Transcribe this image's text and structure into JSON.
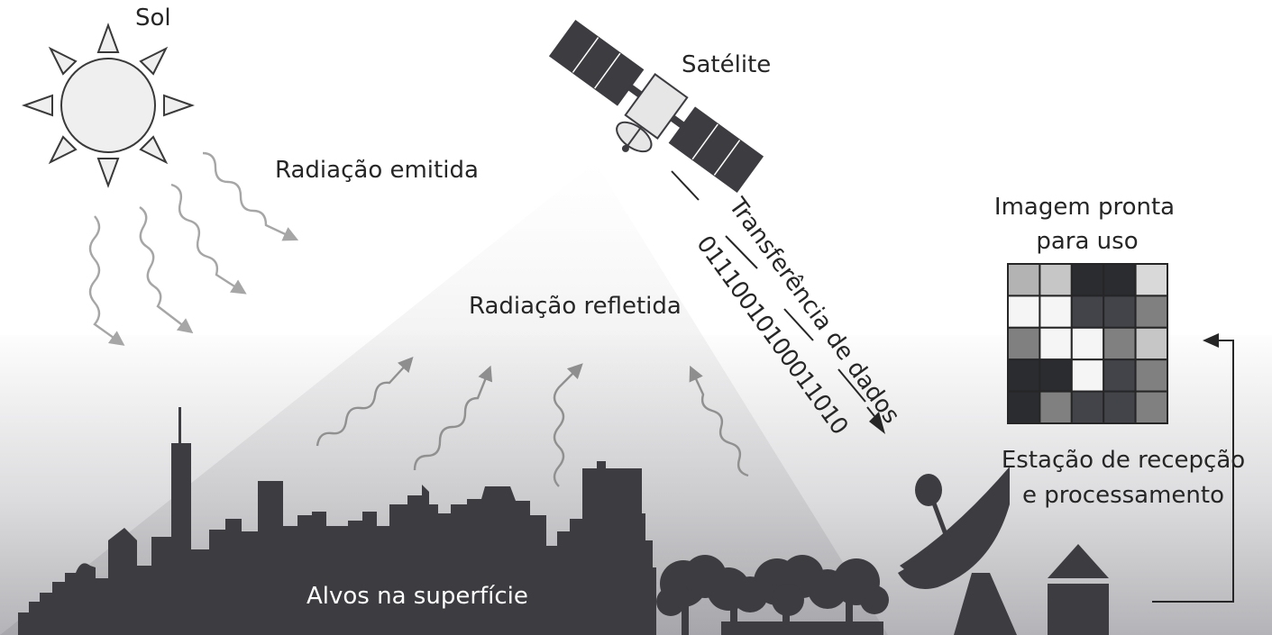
{
  "labels": {
    "sun": "Sol",
    "satellite": "Satélite",
    "emitted_radiation": "Radiação emitida",
    "reflected_radiation": "Radiação refletida",
    "data_transfer": "Transferência de dados",
    "binary": "01110010100011010",
    "image_title_line1": "Imagem pronta",
    "image_title_line2": "para uso",
    "station_line1": "Estação de recepção",
    "station_line2": "e processamento",
    "targets": "Alvos na superfície"
  },
  "image_grid": [
    [
      "#b3b3b3",
      "#c6c6c6",
      "#2b2c30",
      "#2b2c30",
      "#d9d9d9"
    ],
    [
      "#f5f5f5",
      "#f5f5f5",
      "#43444a",
      "#43444a",
      "#808080"
    ],
    [
      "#808080",
      "#f5f5f5",
      "#f5f5f5",
      "#808080",
      "#c6c6c6"
    ],
    [
      "#2b2c30",
      "#2b2c30",
      "#f5f5f5",
      "#43444a",
      "#808080"
    ],
    [
      "#2b2c30",
      "#808080",
      "#43444a",
      "#43444a",
      "#808080"
    ]
  ],
  "colors": {
    "silhouette": "#3d3d41",
    "sun_fill": "#efefef",
    "background_gradient_top": "#ffffff",
    "background_gradient_bottom": "#b9b9bd"
  }
}
